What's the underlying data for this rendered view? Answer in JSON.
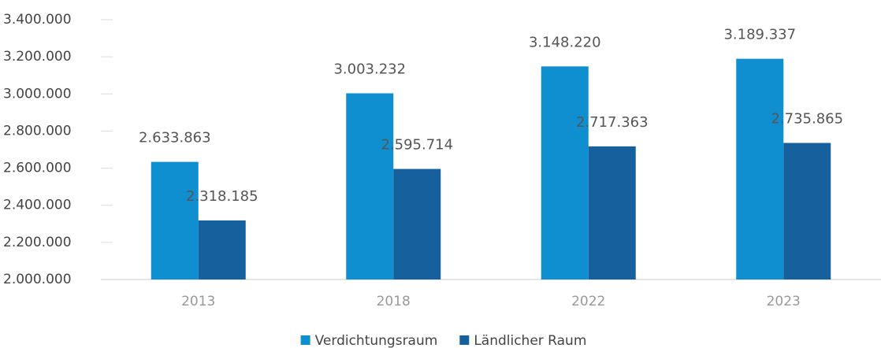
{
  "chart_data": {
    "type": "bar",
    "categories": [
      "2013",
      "2018",
      "2022",
      "2023"
    ],
    "series": [
      {
        "name": "Verdichtungsraum",
        "color": "#0f8fd0",
        "values": [
          2633863,
          3003232,
          3148220,
          3189337
        ],
        "value_labels": [
          "2.633.863",
          "3.003.232",
          "3.148.220",
          "3.189.337"
        ]
      },
      {
        "name": "Ländlicher Raum",
        "color": "#16609e",
        "values": [
          2318185,
          2595714,
          2717363,
          2735865
        ],
        "value_labels": [
          "2.318.185",
          "2.595.714",
          "2.717.363",
          "2.735.865"
        ]
      }
    ],
    "ylim": [
      2000000,
      3400000
    ],
    "yticks": [
      {
        "value": 2000000,
        "label": "2.000.000"
      },
      {
        "value": 2200000,
        "label": "2.200.000"
      },
      {
        "value": 2400000,
        "label": "2.400.000"
      },
      {
        "value": 2600000,
        "label": "2.600.000"
      },
      {
        "value": 2800000,
        "label": "2.800.000"
      },
      {
        "value": 3000000,
        "label": "3.000.000"
      },
      {
        "value": 3200000,
        "label": "3.200.000"
      },
      {
        "value": 3400000,
        "label": "3.400.000"
      }
    ],
    "legend": "bottom"
  }
}
